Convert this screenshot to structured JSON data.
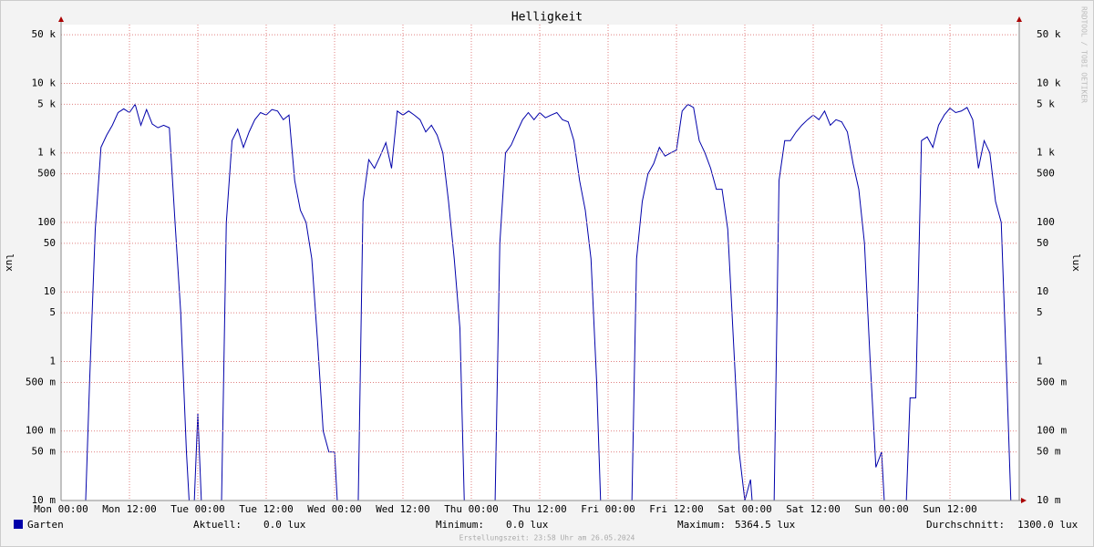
{
  "chart_data": {
    "type": "line",
    "title": "Helligkeit",
    "y_label": "lux",
    "log_y": true,
    "grid": true,
    "xlim": [
      0,
      168
    ],
    "xticks": [
      {
        "value": 0,
        "label": "Mon 00:00"
      },
      {
        "value": 12,
        "label": "Mon 12:00"
      },
      {
        "value": 24,
        "label": "Tue 00:00"
      },
      {
        "value": 36,
        "label": "Tue 12:00"
      },
      {
        "value": 48,
        "label": "Wed 00:00"
      },
      {
        "value": 60,
        "label": "Wed 12:00"
      },
      {
        "value": 72,
        "label": "Thu 00:00"
      },
      {
        "value": 84,
        "label": "Thu 12:00"
      },
      {
        "value": 96,
        "label": "Fri 00:00"
      },
      {
        "value": 108,
        "label": "Fri 12:00"
      },
      {
        "value": 120,
        "label": "Sat 00:00"
      },
      {
        "value": 132,
        "label": "Sat 12:00"
      },
      {
        "value": 144,
        "label": "Sun 00:00"
      },
      {
        "value": 156,
        "label": "Sun 12:00"
      }
    ],
    "ylim": [
      0.01,
      70000
    ],
    "yticks": [
      {
        "value": 0.01,
        "label": "10 m"
      },
      {
        "value": 0.05,
        "label": "50 m"
      },
      {
        "value": 0.1,
        "label": "100 m"
      },
      {
        "value": 0.5,
        "label": "500 m"
      },
      1,
      5,
      10,
      50,
      100,
      500,
      {
        "value": 1000,
        "label": "1 k"
      },
      {
        "value": 5000,
        "label": "5 k"
      },
      {
        "value": 10000,
        "label": "10 k"
      },
      {
        "value": 50000,
        "label": "50 k"
      }
    ],
    "x": [
      0,
      1,
      2,
      3,
      4,
      5,
      6,
      7,
      8,
      9,
      10,
      11,
      12,
      13,
      14,
      15,
      16,
      17,
      18,
      19,
      20,
      21,
      22,
      23,
      24,
      25,
      26,
      27,
      28,
      29,
      30,
      31,
      32,
      33,
      34,
      35,
      36,
      37,
      38,
      39,
      40,
      41,
      42,
      43,
      44,
      45,
      46,
      47,
      48,
      49,
      50,
      51,
      52,
      53,
      54,
      55,
      56,
      57,
      58,
      59,
      60,
      61,
      62,
      63,
      64,
      65,
      66,
      67,
      68,
      69,
      70,
      71,
      72,
      73,
      74,
      75,
      76,
      77,
      78,
      79,
      80,
      81,
      82,
      83,
      84,
      85,
      86,
      87,
      88,
      89,
      90,
      91,
      92,
      93,
      94,
      95,
      96,
      97,
      98,
      99,
      100,
      101,
      102,
      103,
      104,
      105,
      106,
      107,
      108,
      109,
      110,
      111,
      112,
      113,
      114,
      115,
      116,
      117,
      118,
      119,
      120,
      121,
      122,
      123,
      124,
      125,
      126,
      127,
      128,
      129,
      130,
      131,
      132,
      133,
      134,
      135,
      136,
      137,
      138,
      139,
      140,
      141,
      142,
      143,
      144,
      145,
      146,
      147,
      148,
      149,
      150,
      151,
      152,
      153,
      154,
      155,
      156,
      157,
      158,
      159,
      160,
      161,
      162,
      163,
      164,
      165,
      166,
      167,
      168
    ],
    "series": [
      {
        "name": "Garten",
        "color": "#0000aa",
        "values": [
          0,
          0,
          0,
          0,
          0,
          0.5,
          80,
          1200,
          1800,
          2500,
          3800,
          4300,
          3800,
          5000,
          2500,
          4200,
          2600,
          2300,
          2500,
          2300,
          100,
          5,
          0.05,
          0,
          0.18,
          0,
          0,
          0,
          0,
          100,
          1500,
          2200,
          1200,
          2000,
          3000,
          3800,
          3500,
          4200,
          4000,
          3000,
          3500,
          400,
          150,
          100,
          30,
          2,
          0.1,
          0.05,
          0.05,
          0,
          0,
          0,
          0,
          200,
          800,
          600,
          900,
          1400,
          600,
          4000,
          3500,
          4000,
          3500,
          3000,
          2000,
          2500,
          1800,
          1000,
          200,
          30,
          3,
          0,
          0,
          0,
          0,
          0,
          0,
          50,
          1000,
          1300,
          2000,
          3000,
          3800,
          3000,
          3800,
          3200,
          3500,
          3800,
          3000,
          2800,
          1500,
          400,
          150,
          30,
          0.5,
          0,
          0,
          0,
          0,
          0,
          0,
          30,
          200,
          500,
          700,
          1200,
          900,
          1000,
          1100,
          4000,
          5000,
          4500,
          1500,
          1000,
          600,
          300,
          300,
          80,
          2,
          0.05,
          0.01,
          0.02,
          0,
          0,
          0,
          0,
          400,
          1500,
          1500,
          2000,
          2500,
          3000,
          3500,
          3000,
          4000,
          2500,
          3000,
          2800,
          2000,
          700,
          300,
          50,
          1,
          0.03,
          0.05,
          0,
          0,
          0,
          0,
          0.3,
          0.3,
          1500,
          1700,
          1200,
          2500,
          3500,
          4400,
          3800,
          4000,
          4500,
          3000,
          600,
          1500,
          1000,
          200,
          100,
          0.5,
          0,
          0
        ]
      }
    ],
    "legend_stats": [
      {
        "label": "Aktuell:",
        "value": "0.0 lux"
      },
      {
        "label": "Minimum:",
        "value": "0.0 lux"
      },
      {
        "label": "Maximum:",
        "value": "5364.5 lux"
      },
      {
        "label": "Durchschnitt:",
        "value": "1300.0 lux"
      }
    ],
    "footer": "Erstellungszeit: 23:58 Uhr am 26.05.2024",
    "watermark": "RRDTOOL / TOBI OETIKER"
  }
}
